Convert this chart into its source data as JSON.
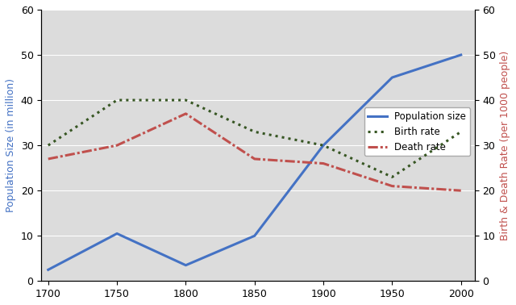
{
  "years": [
    1700,
    1750,
    1800,
    1850,
    1900,
    1950,
    2000
  ],
  "population": [
    2.5,
    10.5,
    3.5,
    10,
    30,
    45,
    50
  ],
  "birth_rate": [
    30,
    40,
    40,
    33,
    30,
    23,
    33
  ],
  "death_rate": [
    27,
    30,
    37,
    27,
    26,
    21,
    20
  ],
  "pop_color": "#4472C4",
  "birth_color": "#375623",
  "death_color": "#C0504D",
  "ylim": [
    0,
    60
  ],
  "ylabel_left": "Population Size (in million)",
  "ylabel_right": "Birth & Death Rate (per 1000 people)",
  "legend_labels": [
    "Population size",
    "Birth rate",
    "Death rate"
  ],
  "plot_bg_color": "#DCDCDC",
  "axis_fontsize": 9,
  "tick_fontsize": 9
}
